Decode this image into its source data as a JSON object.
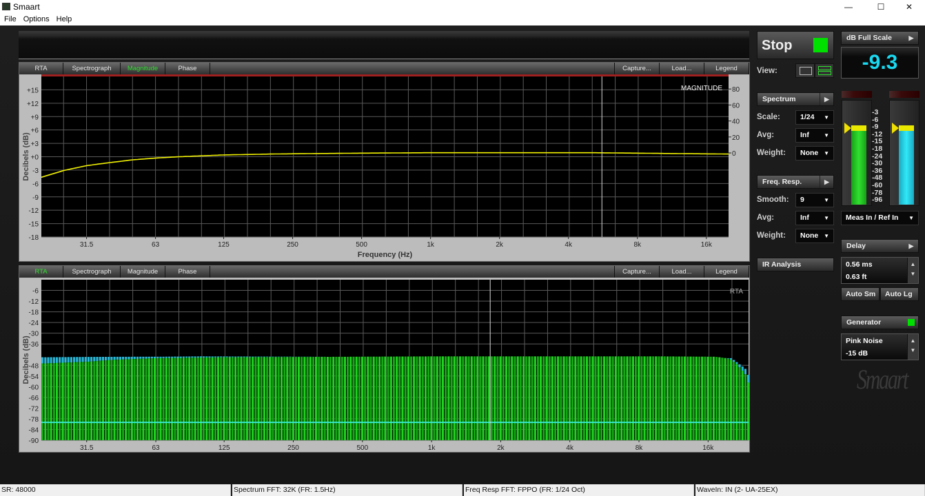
{
  "window": {
    "title": "Smaart",
    "controls": {
      "minimize": "—",
      "maximize": "☐",
      "close": "✕"
    }
  },
  "menu": [
    "File",
    "Options",
    "Help"
  ],
  "plot_tabs": {
    "left": [
      "RTA",
      "Spectrograph",
      "Magnitude",
      "Phase"
    ],
    "right": [
      "Capture...",
      "Load...",
      "Legend"
    ]
  },
  "controls": {
    "stop_label": "Stop",
    "stop_indicator_color": "#00e000",
    "view_label": "View:",
    "spectrum": {
      "label": "Spectrum",
      "rows": [
        {
          "label": "Scale:",
          "value": "1/24"
        },
        {
          "label": "Avg:",
          "value": "Inf"
        },
        {
          "label": "Weight:",
          "value": "None"
        }
      ]
    },
    "freq_resp": {
      "label": "Freq. Resp.",
      "rows": [
        {
          "label": "Smooth:",
          "value": "9"
        },
        {
          "label": "Avg:",
          "value": "Inf"
        },
        {
          "label": "Weight:",
          "value": "None"
        }
      ]
    },
    "ir_analysis": "IR Analysis"
  },
  "level": {
    "mode": "dB Full Scale",
    "value": "-9.3",
    "value_color": "#19d8f0",
    "meter_scale": [
      "-3",
      "-6",
      "-9",
      "-12",
      "-15",
      "-18",
      "-24",
      "-30",
      "-36",
      "-48",
      "-60",
      "-78",
      "-96"
    ],
    "meter_left_db": -10,
    "meter_right_db": -10,
    "input_select": "Meas In / Ref In"
  },
  "delay": {
    "label": "Delay",
    "ms": "0.56 ms",
    "ft": "0.63 ft",
    "auto_sm": "Auto Sm",
    "auto_lg": "Auto Lg"
  },
  "generator": {
    "label": "Generator",
    "indicator_color": "#00e000",
    "signal": "Pink Noise",
    "level": "-15 dB"
  },
  "logo": "Smaart",
  "status": [
    "SR: 48000",
    "Spectrum FFT: 32K (FR: 1.5Hz)",
    "Freq Resp FFT: FPPO (FR: 1/24 Oct)",
    "WaveIn: IN (2- UA-25EX)"
  ],
  "chart_data": [
    {
      "type": "line",
      "title": "MAGNITUDE",
      "xlabel": "Frequency (Hz)",
      "ylabel": "Decibels (dB)",
      "xscale": "log",
      "xlim": [
        20,
        20000
      ],
      "ylim": [
        -18,
        18
      ],
      "xticks": [
        {
          "v": 31.5,
          "t": "31.5"
        },
        {
          "v": 63,
          "t": "63"
        },
        {
          "v": 125,
          "t": "125"
        },
        {
          "v": 250,
          "t": "250"
        },
        {
          "v": 500,
          "t": "500"
        },
        {
          "v": 1000,
          "t": "1k"
        },
        {
          "v": 2000,
          "t": "2k"
        },
        {
          "v": 4000,
          "t": "4k"
        },
        {
          "v": 8000,
          "t": "8k"
        },
        {
          "v": 16000,
          "t": "16k"
        }
      ],
      "yticks": [
        "+15",
        "+12",
        "+9",
        "+6",
        "+3",
        "+0",
        "-3",
        "-6",
        "-9",
        "-12",
        "-15",
        "-18"
      ],
      "y2ticks": [
        80,
        60,
        40,
        20,
        0
      ],
      "y2lim": [
        0,
        80
      ],
      "grid": true,
      "cursor_hz": 5600,
      "trace_color": "#f2f200",
      "series": [
        {
          "x": [
            20,
            25,
            31.5,
            40,
            50,
            63,
            80,
            100,
            125,
            160,
            200,
            300,
            500,
            1000,
            2000,
            5000,
            8000,
            12000,
            20000
          ],
          "y": [
            -4.6,
            -3.1,
            -2,
            -1.3,
            -0.7,
            -0.3,
            0,
            0.2,
            0.4,
            0.5,
            0.6,
            0.7,
            0.8,
            0.9,
            0.9,
            0.9,
            0.8,
            0.7,
            0.6
          ]
        }
      ]
    },
    {
      "type": "bar",
      "title": "RTA",
      "xlabel": "Frequency (Hz)",
      "ylabel": "Decibels (dB)",
      "xscale": "log",
      "xlim": [
        20,
        24000
      ],
      "ylim": [
        -90,
        0
      ],
      "bands_per_octave": 24,
      "xticks": [
        {
          "v": 31.5,
          "t": "31.5"
        },
        {
          "v": 63,
          "t": "63"
        },
        {
          "v": 125,
          "t": "125"
        },
        {
          "v": 250,
          "t": "250"
        },
        {
          "v": 500,
          "t": "500"
        },
        {
          "v": 1000,
          "t": "1k"
        },
        {
          "v": 2000,
          "t": "2k"
        },
        {
          "v": 4000,
          "t": "4k"
        },
        {
          "v": 8000,
          "t": "8k"
        },
        {
          "v": 16000,
          "t": "16k"
        }
      ],
      "yticks": [
        "-6",
        "-12",
        "-18",
        "-24",
        "-30",
        "-36",
        "-48",
        "-54",
        "-60",
        "-66",
        "-72",
        "-78",
        "-84",
        "-90"
      ],
      "ytick_values": [
        -6,
        -12,
        -18,
        -24,
        -30,
        -36,
        -48,
        -54,
        -60,
        -66,
        -72,
        -78,
        -84,
        -90
      ],
      "grid": true,
      "cursor_hz": 1800,
      "reference_line_db": -80,
      "bar_color": "#1ec81e",
      "peak_color": "#29b8d8",
      "ref_color": "#36e8d0",
      "series": [
        {
          "name": "level",
          "x": [
            20,
            25,
            31.5,
            40,
            63,
            125,
            1000,
            10000,
            17000,
            19000,
            20000,
            21000,
            22000,
            23000,
            24000
          ],
          "y": [
            -47,
            -46.5,
            -46,
            -45,
            -44,
            -43.5,
            -43,
            -43,
            -43.2,
            -44,
            -45,
            -47,
            -50,
            -53,
            -60
          ]
        },
        {
          "name": "peak",
          "x": [
            20,
            31.5,
            50,
            63,
            100,
            20000,
            22000,
            23000,
            24000
          ],
          "y": [
            -43.5,
            -43.3,
            -43.2,
            -43.2,
            -43,
            -44,
            -48,
            -50,
            -55
          ]
        }
      ]
    }
  ]
}
